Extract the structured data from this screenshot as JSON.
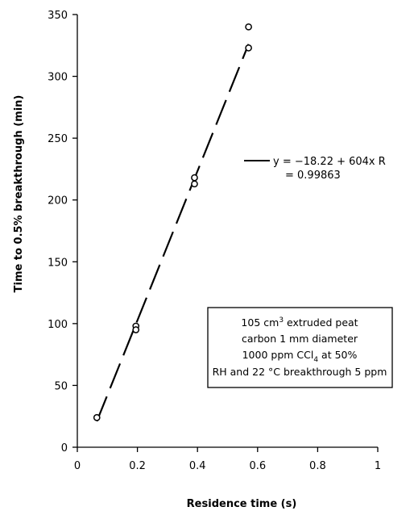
{
  "chart_data": {
    "type": "scatter",
    "xlabel": "Residence time (s)",
    "ylabel": "Time to 0.5% breakthrough (min)",
    "xlim": [
      0,
      1
    ],
    "ylim": [
      0,
      350
    ],
    "x_ticks": [
      0,
      0.2,
      0.4,
      0.6,
      0.8,
      1
    ],
    "x_tick_labels": [
      "0",
      "0.2",
      "0.4",
      "0.6",
      "0.8",
      "1"
    ],
    "y_ticks": [
      0,
      50,
      100,
      150,
      200,
      250,
      300,
      350
    ],
    "y_tick_labels": [
      "0",
      "50",
      "100",
      "150",
      "200",
      "250",
      "300",
      "350"
    ],
    "grid": false,
    "points": [
      {
        "x": 0.065,
        "y": 24
      },
      {
        "x": 0.195,
        "y": 98
      },
      {
        "x": 0.195,
        "y": 95
      },
      {
        "x": 0.39,
        "y": 218
      },
      {
        "x": 0.39,
        "y": 213
      },
      {
        "x": 0.57,
        "y": 340
      },
      {
        "x": 0.57,
        "y": 323
      }
    ],
    "fit_line": {
      "intercept": -18.22,
      "slope": 604,
      "x_range": [
        0.065,
        0.57
      ],
      "style": "dashed"
    },
    "legend": {
      "placement": "right",
      "line1": "y = −18.22 + 604x R",
      "line2": "= 0.99863"
    },
    "annotation": {
      "placement": "lower-right",
      "line1_pre": "105 cm",
      "line1_sup": "3",
      "line1_post": " extruded peat",
      "line2": "carbon 1 mm diameter",
      "line3_pre": "1000 ppm CCl",
      "line3_sub": "4",
      "line3_post": " at 50%",
      "line4": "RH and 22 °C breakthrough 5 ppm"
    }
  }
}
